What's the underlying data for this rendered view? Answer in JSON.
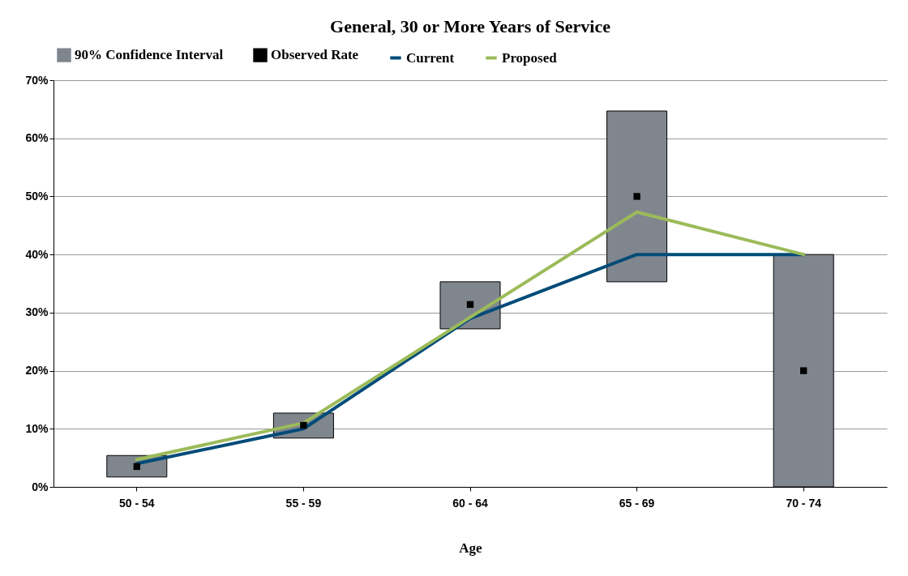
{
  "chart_data": {
    "type": "bar",
    "title": "General, 30 or More Years of Service",
    "xlabel": "Age",
    "categories": [
      "50 - 54",
      "55 - 59",
      "60 - 64",
      "65 - 69",
      "70 - 74"
    ],
    "series": [
      {
        "name": "90% Confidence Interval",
        "color": "#80868e",
        "base": [
          1.7,
          8.4,
          27.2,
          35.3,
          0
        ],
        "values": [
          3.7,
          4.3,
          8.1,
          29.4,
          40
        ]
      },
      {
        "name": "Observed Rate",
        "type": "scatter",
        "marker": "square",
        "color": "#000000",
        "values": [
          3.5,
          10.6,
          31.4,
          50,
          20
        ]
      },
      {
        "name": "Current",
        "type": "line",
        "color": "#004b78",
        "values": [
          4.0,
          10.0,
          29.0,
          40,
          40
        ]
      },
      {
        "name": "Proposed",
        "type": "line",
        "color": "#9bbb59",
        "values": [
          4.7,
          11.0,
          29.2,
          47.3,
          40
        ]
      }
    ],
    "ylim": [
      0,
      70
    ],
    "yticks": [
      {
        "value": 0,
        "label": "0%"
      },
      {
        "value": 10,
        "label": "10%"
      },
      {
        "value": 20,
        "label": "20%"
      },
      {
        "value": 30,
        "label": "30%"
      },
      {
        "value": 40,
        "label": "40%"
      },
      {
        "value": 50,
        "label": "50%"
      },
      {
        "value": 60,
        "label": "60%"
      },
      {
        "value": 70,
        "label": "70%"
      }
    ],
    "grid": "y",
    "legend": "top"
  }
}
